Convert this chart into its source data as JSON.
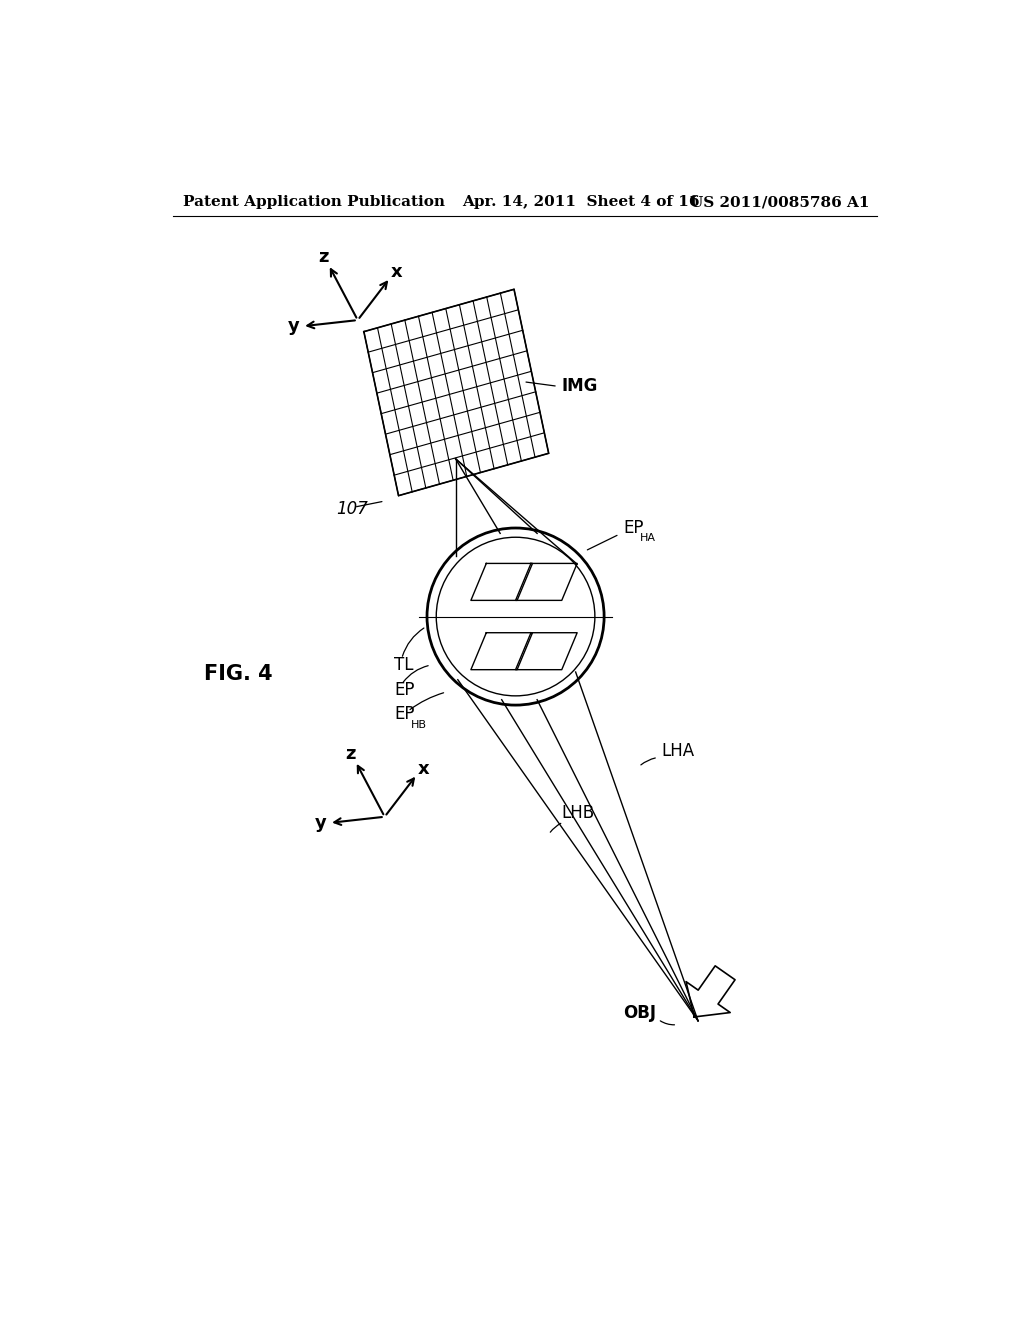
{
  "background_color": "#ffffff",
  "header_left": "Patent Application Publication",
  "header_center": "Apr. 14, 2011  Sheet 4 of 16",
  "header_right": "US 2011/0085786 A1",
  "fig_label": "FIG. 4",
  "label_107": "107",
  "label_IMG": "IMG",
  "label_TL": "TL",
  "label_EP": "EP",
  "label_EPHA": "EP",
  "label_EPHA_sub": "HA",
  "label_EPHB": "EP",
  "label_EPHB_sub": "HB",
  "label_LHA": "LHA",
  "label_LHB": "LHB",
  "label_OBJ": "OBJ"
}
